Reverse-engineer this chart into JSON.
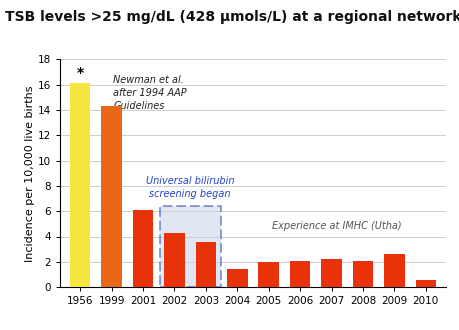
{
  "title": "TSB levels >25 mg/dL (428 μmols/L) at a regional network",
  "ylabel": "Incidence per 10,000 live births",
  "ylim": [
    0,
    18
  ],
  "yticks": [
    0,
    2,
    4,
    6,
    8,
    10,
    12,
    14,
    16,
    18
  ],
  "categories": [
    "1956",
    "1999",
    "2001",
    "2002",
    "2003",
    "2004",
    "2005",
    "2006",
    "2007",
    "2008",
    "2009",
    "2010"
  ],
  "values": [
    16.1,
    14.3,
    6.1,
    4.3,
    3.6,
    1.4,
    1.95,
    2.1,
    2.25,
    2.1,
    2.6,
    0.55
  ],
  "bar_colors": [
    "#f5e642",
    "#e8671a",
    "#e8330a",
    "#e8330a",
    "#e8330a",
    "#e8330a",
    "#e8330a",
    "#e8330a",
    "#e8330a",
    "#e8330a",
    "#e8330a",
    "#e8330a"
  ],
  "annotation_star": "*",
  "annotation_newman": "Newman et al.\nafter 1994 AAP\nGuidelines",
  "annotation_screening": "Universal bilirubin\nscreening began",
  "annotation_experience": "Experience at IMHC (Utha)",
  "background_color": "#ffffff",
  "title_fontsize": 10,
  "axis_fontsize": 8,
  "tick_fontsize": 7.5
}
